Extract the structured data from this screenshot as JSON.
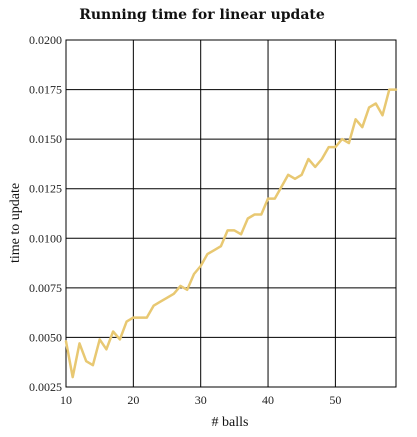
{
  "chart_data": {
    "type": "line",
    "title": "Running time for linear update",
    "xlabel": "# balls",
    "ylabel": "time to update",
    "xlim": [
      10,
      59
    ],
    "ylim": [
      0.0025,
      0.02
    ],
    "x_ticks": [
      "10",
      "20",
      "30",
      "40",
      "50"
    ],
    "x_tick_values": [
      10,
      20,
      30,
      40,
      50
    ],
    "y_ticks": [
      "0.0025",
      "0.0050",
      "0.0075",
      "0.0100",
      "0.0125",
      "0.0150",
      "0.0175",
      "0.0200"
    ],
    "y_tick_values": [
      0.0025,
      0.005,
      0.0075,
      0.01,
      0.0125,
      0.015,
      0.0175,
      0.02
    ],
    "grid": true,
    "line_color": "#e8c872",
    "series": [
      {
        "x": [
          10,
          11,
          12,
          13,
          14,
          15,
          16,
          17,
          18,
          19,
          20,
          21,
          22,
          23,
          24,
          25,
          26,
          27,
          28,
          29,
          30,
          31,
          32,
          33,
          34,
          35,
          36,
          37,
          38,
          39,
          40,
          41,
          42,
          43,
          44,
          45,
          46,
          47,
          48,
          49,
          50,
          51,
          52,
          53,
          54,
          55,
          56,
          57,
          58,
          59
        ],
        "values": [
          0.0048,
          0.003,
          0.0047,
          0.0038,
          0.0036,
          0.0049,
          0.0044,
          0.0053,
          0.0049,
          0.0058,
          0.006,
          0.006,
          0.006,
          0.0066,
          0.0068,
          0.007,
          0.0072,
          0.0076,
          0.0074,
          0.0082,
          0.0086,
          0.0092,
          0.0094,
          0.0096,
          0.0104,
          0.0104,
          0.0102,
          0.011,
          0.0112,
          0.0112,
          0.012,
          0.012,
          0.0126,
          0.0132,
          0.013,
          0.0132,
          0.014,
          0.0136,
          0.014,
          0.0146,
          0.0146,
          0.015,
          0.0148,
          0.016,
          0.0156,
          0.0166,
          0.0168,
          0.0162,
          0.0175,
          0.0175
        ]
      }
    ]
  }
}
